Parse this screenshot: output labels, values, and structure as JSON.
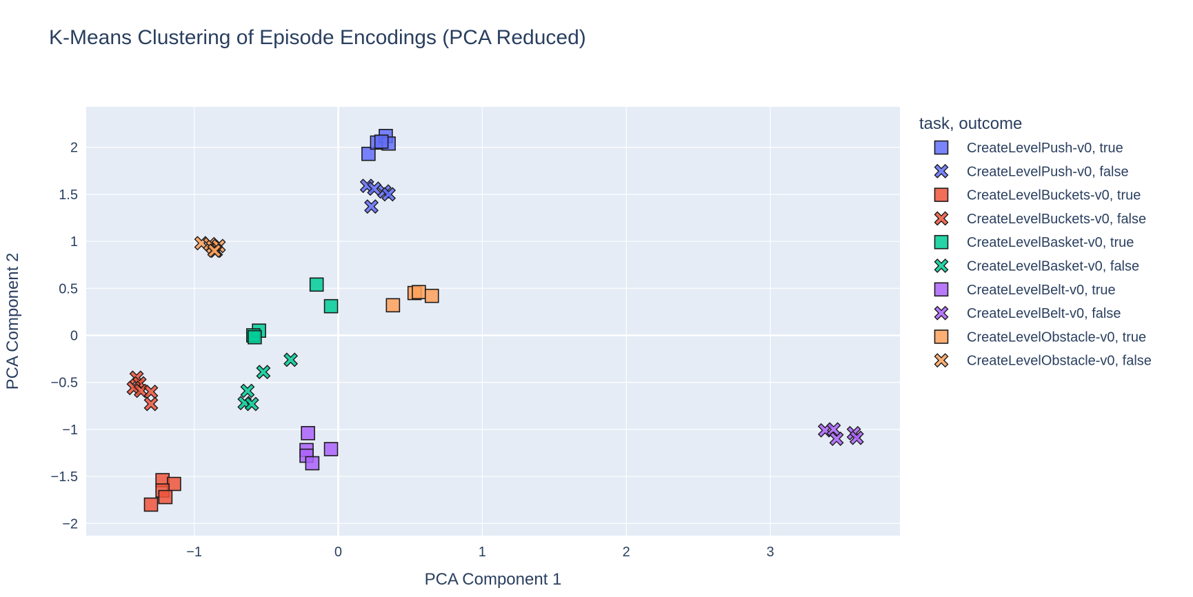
{
  "chart_data": {
    "type": "scatter",
    "title": "K-Means Clustering of Episode Encodings (PCA Reduced)",
    "xlabel": "PCA Component 1",
    "ylabel": "PCA Component 2",
    "xlim": [
      -1.75,
      3.9
    ],
    "ylim": [
      -2.13,
      2.43
    ],
    "xticks": [
      -1,
      0,
      1,
      2,
      3
    ],
    "xtick_labels": [
      "−1",
      "0",
      "1",
      "2",
      "3"
    ],
    "yticks": [
      -2,
      -1.5,
      -1,
      -0.5,
      0,
      0.5,
      1,
      1.5,
      2
    ],
    "ytick_labels": [
      "−2",
      "−1.5",
      "−1",
      "−0.5",
      "0",
      "0.5",
      "1",
      "1.5",
      "2"
    ],
    "grid": true,
    "legend_title": "task, outcome",
    "legend_position": "right",
    "series": [
      {
        "name": "CreateLevelPush-v0, true",
        "color": "#636efa",
        "symbol": "square",
        "x": [
          0.21,
          0.27,
          0.33,
          0.35,
          0.3
        ],
        "y": [
          1.93,
          2.05,
          2.12,
          2.04,
          2.06
        ]
      },
      {
        "name": "CreateLevelPush-v0, false",
        "color": "#636efa",
        "symbol": "x",
        "x": [
          0.2,
          0.25,
          0.32,
          0.35,
          0.23
        ],
        "y": [
          1.59,
          1.56,
          1.53,
          1.5,
          1.37
        ]
      },
      {
        "name": "CreateLevelBuckets-v0, true",
        "color": "#ef553b",
        "symbol": "square",
        "x": [
          -1.22,
          -1.14,
          -1.22,
          -1.2,
          -1.3
        ],
        "y": [
          -1.54,
          -1.58,
          -1.65,
          -1.72,
          -1.8
        ]
      },
      {
        "name": "CreateLevelBuckets-v0, false",
        "color": "#ef553b",
        "symbol": "x",
        "x": [
          -1.4,
          -1.38,
          -1.42,
          -1.37,
          -1.3,
          -1.3
        ],
        "y": [
          -0.45,
          -0.51,
          -0.56,
          -0.59,
          -0.6,
          -0.73
        ]
      },
      {
        "name": "CreateLevelBasket-v0, true",
        "color": "#00cc96",
        "symbol": "square",
        "x": [
          -0.15,
          -0.05,
          -0.55,
          -0.59,
          -0.58
        ],
        "y": [
          0.54,
          0.31,
          0.05,
          0.0,
          -0.02
        ]
      },
      {
        "name": "CreateLevelBasket-v0, false",
        "color": "#00cc96",
        "symbol": "x",
        "x": [
          -0.33,
          -0.52,
          -0.63,
          -0.65,
          -0.6
        ],
        "y": [
          -0.26,
          -0.39,
          -0.59,
          -0.72,
          -0.73
        ]
      },
      {
        "name": "CreateLevelBelt-v0, true",
        "color": "#ab63fa",
        "symbol": "square",
        "x": [
          -0.21,
          -0.05,
          -0.22,
          -0.22,
          -0.18
        ],
        "y": [
          -1.04,
          -1.21,
          -1.22,
          -1.28,
          -1.36
        ]
      },
      {
        "name": "CreateLevelBelt-v0, false",
        "color": "#ab63fa",
        "symbol": "x",
        "x": [
          3.38,
          3.44,
          3.46,
          3.58,
          3.6
        ],
        "y": [
          -1.01,
          -1.0,
          -1.1,
          -1.04,
          -1.09
        ]
      },
      {
        "name": "CreateLevelObstacle-v0, true",
        "color": "#ffa15a",
        "symbol": "square",
        "x": [
          0.38,
          0.53,
          0.56,
          0.65
        ],
        "y": [
          0.32,
          0.45,
          0.46,
          0.42
        ]
      },
      {
        "name": "CreateLevelObstacle-v0, false",
        "color": "#ffa15a",
        "symbol": "x",
        "x": [
          -0.95,
          -0.89,
          -0.87,
          -0.83,
          -0.85,
          -0.86
        ],
        "y": [
          0.98,
          0.97,
          0.94,
          0.95,
          0.9,
          0.9
        ]
      }
    ]
  }
}
